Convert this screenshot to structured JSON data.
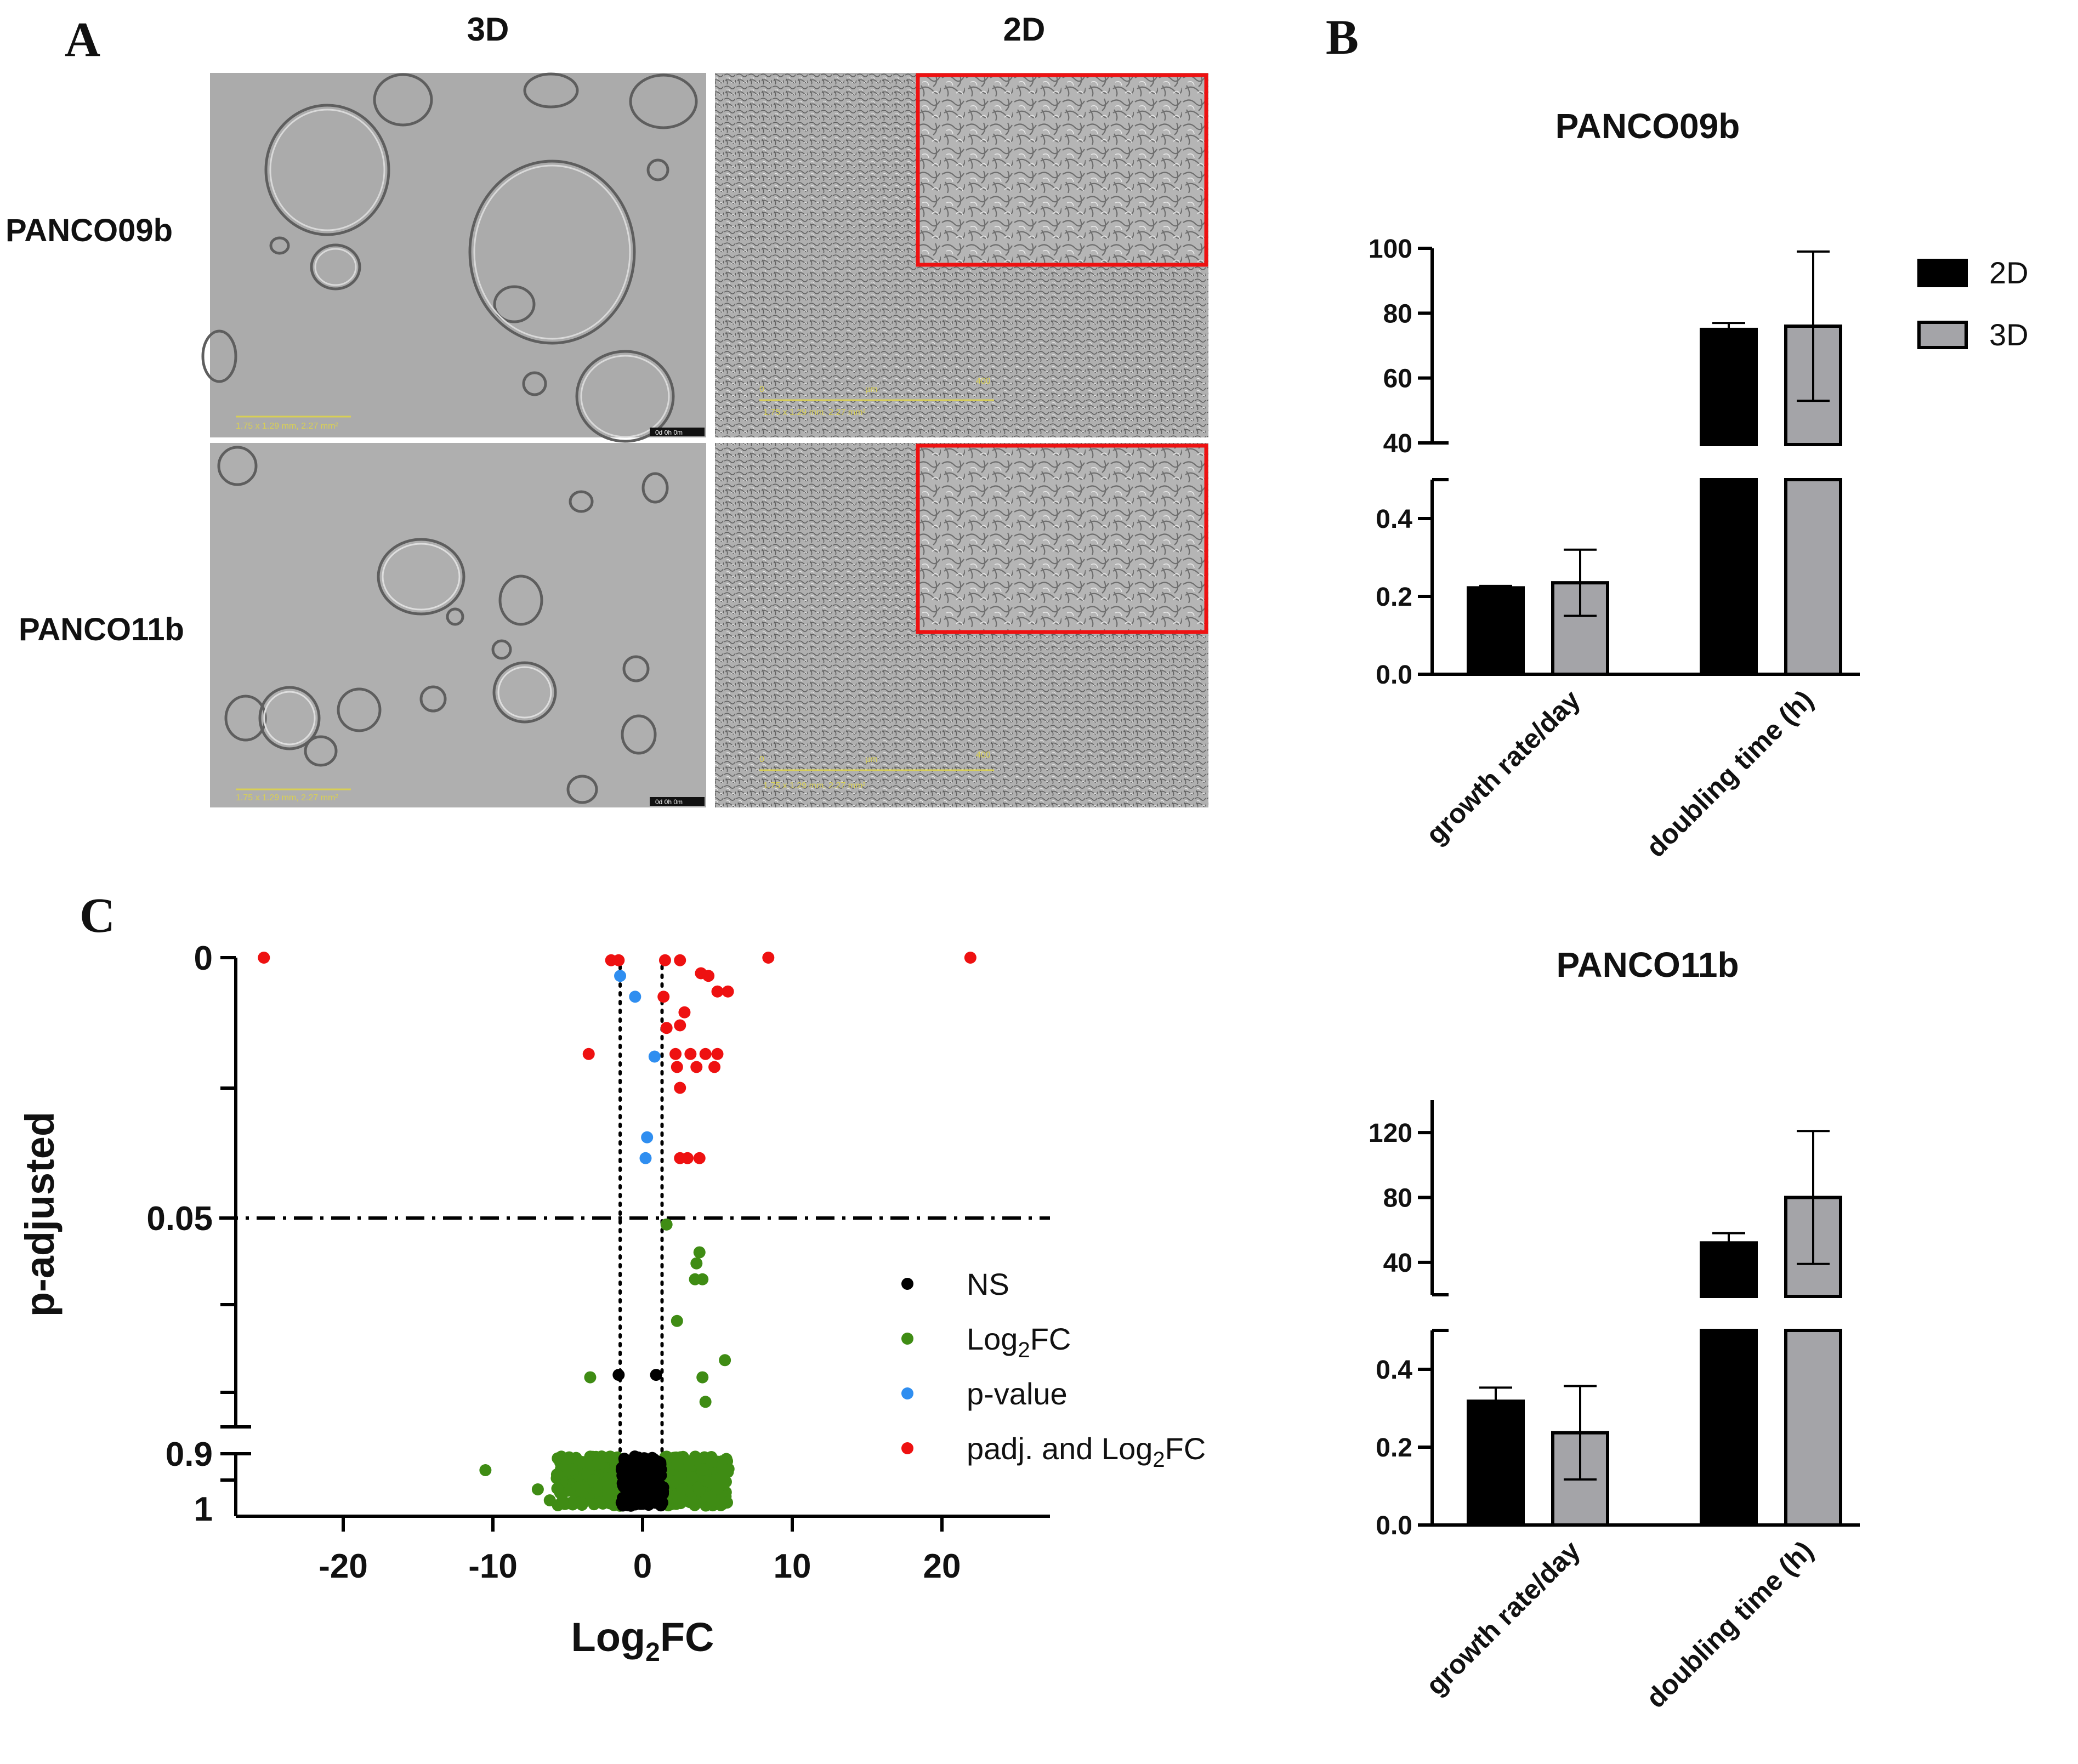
{
  "panel_labels": {
    "a": "A",
    "b": "B",
    "c": "C"
  },
  "micrographs": {
    "col_3d": "3D",
    "col_2d": "2D",
    "row_1": "PANCO09b",
    "row_2": "PANCO11b",
    "scale_0": "0",
    "scale_unit": "µm",
    "scale_max": "400",
    "scale_info": "1.75 x 1.29 mm, 2.27 mm²",
    "timestamp": "0d 0h 0m"
  },
  "colors": {
    "bar_2d": "#000000",
    "bar_3d": "#a4a4a8",
    "ns": "#000000",
    "log2fc": "#3f8c14",
    "pvalue": "#2f8ef0",
    "padj_log2fc": "#ee1111",
    "inset_frame": "#ee1111"
  },
  "chart_data": [
    {
      "type": "bar",
      "title": "PANCO09b",
      "categories": [
        "growth rate/day",
        "doubling time (h)"
      ],
      "series": [
        {
          "name": "2D",
          "values": [
            0.222,
            75
          ],
          "errors": [
            0.005,
            2
          ]
        },
        {
          "name": "3D",
          "values": [
            0.235,
            76
          ],
          "errors": [
            0.085,
            23
          ]
        }
      ],
      "y_axis_broken": true,
      "lower_segment": {
        "ylim": [
          0,
          0.5
        ],
        "ticks": [
          "0.0",
          "0.2",
          "0.4"
        ]
      },
      "upper_segment": {
        "ylim": [
          40,
          100
        ],
        "ticks": [
          "40",
          "60",
          "80",
          "100"
        ]
      },
      "legend": {
        "position": "right",
        "entries": [
          "2D",
          "3D"
        ]
      }
    },
    {
      "type": "bar",
      "title": "PANCO11b",
      "categories": [
        "growth rate/day",
        "doubling time (h)"
      ],
      "series": [
        {
          "name": "2D",
          "values": [
            0.318,
            52
          ],
          "errors": [
            0.035,
            6
          ]
        },
        {
          "name": "3D",
          "values": [
            0.237,
            80
          ],
          "errors": [
            0.12,
            41
          ]
        }
      ],
      "y_axis_broken": true,
      "lower_segment": {
        "ylim": [
          0,
          0.5
        ],
        "ticks": [
          "0.0",
          "0.2",
          "0.4"
        ]
      },
      "upper_segment": {
        "ylim": [
          20,
          140
        ],
        "ticks": [
          "40",
          "80",
          "120"
        ]
      }
    },
    {
      "type": "scatter",
      "subtype": "volcano",
      "xlabel": "Log2FC",
      "xlabel_base": "Log",
      "xlabel_sub": "2",
      "xlabel_tail": "FC",
      "ylabel": "p-adjusted",
      "xlim": [
        -27,
        27
      ],
      "xticks": [
        "-20",
        "-10",
        "0",
        "10",
        "20"
      ],
      "yticks": [
        "0",
        "0.05",
        "0.9",
        "1"
      ],
      "y_axis_broken": true,
      "threshold_padj": 0.05,
      "threshold_log2fc": [
        -1.5,
        1.3
      ],
      "legend": {
        "position": "right",
        "entries": [
          {
            "label": "NS",
            "base": "NS",
            "sub": "",
            "tail": ""
          },
          {
            "label": "Log2FC",
            "base": "Log",
            "sub": "2",
            "tail": "FC"
          },
          {
            "label": "p-value",
            "base": "p-value",
            "sub": "",
            "tail": ""
          },
          {
            "label": "padj. and Log2FC",
            "base": "padj. and Log",
            "sub": "2",
            "tail": "FC"
          }
        ]
      },
      "series": [
        {
          "name": "padj. and Log2FC",
          "points": [
            [
              -25.3,
              0
            ],
            [
              8.4,
              0
            ],
            [
              21.9,
              0
            ],
            [
              -2.1,
              0.0005
            ],
            [
              -1.6,
              0.0005
            ],
            [
              1.5,
              0.0005
            ],
            [
              2.5,
              0.0005
            ],
            [
              3.9,
              0.003
            ],
            [
              4.4,
              0.0035
            ],
            [
              5.7,
              0.0065
            ],
            [
              5.0,
              0.0065
            ],
            [
              2.8,
              0.0105
            ],
            [
              2.5,
              0.013
            ],
            [
              1.4,
              0.0075
            ],
            [
              1.6,
              0.0135
            ],
            [
              -3.6,
              0.0185
            ],
            [
              2.2,
              0.0185
            ],
            [
              3.2,
              0.0185
            ],
            [
              4.2,
              0.0185
            ],
            [
              5.0,
              0.0185
            ],
            [
              4.8,
              0.021
            ],
            [
              2.3,
              0.021
            ],
            [
              3.6,
              0.021
            ],
            [
              2.5,
              0.025
            ],
            [
              2.5,
              0.0385
            ],
            [
              3.0,
              0.0385
            ],
            [
              3.8,
              0.0385
            ]
          ]
        },
        {
          "name": "p-value",
          "points": [
            [
              -1.5,
              0.0035
            ],
            [
              -0.5,
              0.0075
            ],
            [
              0.8,
              0.019
            ],
            [
              0.3,
              0.0345
            ],
            [
              0.2,
              0.0385
            ]
          ]
        },
        {
          "name": "Log2FC",
          "points": [
            [
              1.6,
              0.0765
            ],
            [
              3.8,
              0.19
            ],
            [
              3.6,
              0.235
            ],
            [
              3.5,
              0.3
            ],
            [
              4.0,
              0.3
            ],
            [
              2.3,
              0.47
            ],
            [
              5.5,
              0.63
            ],
            [
              -3.5,
              0.7
            ],
            [
              4.0,
              0.7
            ],
            [
              4.2,
              0.8
            ],
            [
              -10.5,
              0.93
            ],
            [
              -7.0,
              0.965
            ],
            [
              -6.2,
              0.985
            ]
          ]
        },
        {
          "name": "NS",
          "points": [
            [
              -1.6,
              0.69
            ],
            [
              0.9,
              0.69
            ]
          ]
        }
      ]
    }
  ]
}
